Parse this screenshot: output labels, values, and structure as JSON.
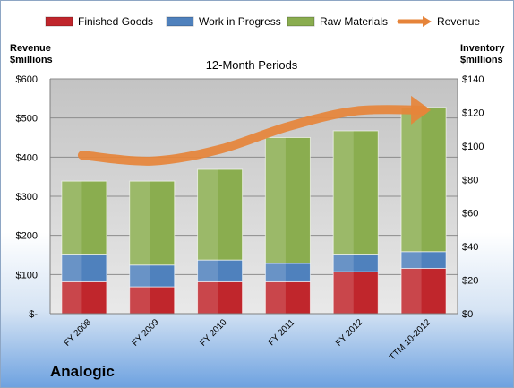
{
  "company": "Analogic",
  "chart_data": {
    "type": "bar",
    "stacked": true,
    "title": "12-Month Periods",
    "ylabel_left": [
      "Revenue",
      "$millions"
    ],
    "ylabel_right": [
      "Inventory",
      "$millions"
    ],
    "categories": [
      "FY 2008",
      "FY 2009",
      "FY 2010",
      "FY 2011",
      "FY 2012",
      "TTM 10-2012"
    ],
    "left_axis": {
      "min": 0,
      "max": 600,
      "ticks": [
        "$-",
        "$100",
        "$200",
        "$300",
        "$400",
        "$500",
        "$600"
      ],
      "tick_values": [
        0,
        100,
        200,
        300,
        400,
        500,
        600
      ]
    },
    "right_axis": {
      "min": 0,
      "max": 140,
      "ticks": [
        "$0",
        "$20",
        "$40",
        "$60",
        "$80",
        "$100",
        "$120",
        "$140"
      ],
      "tick_values": [
        0,
        20,
        40,
        60,
        80,
        100,
        120,
        140
      ]
    },
    "series": [
      {
        "name": "Finished Goods",
        "axis": "right",
        "color": "#c0262c",
        "values": [
          19,
          16,
          19,
          19,
          25,
          27
        ]
      },
      {
        "name": "Work in Progress",
        "axis": "right",
        "color": "#4f81bd",
        "values": [
          16,
          13,
          13,
          11,
          10,
          10
        ]
      },
      {
        "name": "Raw Materials",
        "axis": "right",
        "color": "#8aad4f",
        "values": [
          44,
          50,
          54,
          75,
          74,
          86
        ]
      },
      {
        "name": "Revenue",
        "axis": "left",
        "type": "line",
        "color": "#e6843a",
        "values": [
          405,
          390,
          420,
          478,
          518,
          520
        ]
      }
    ],
    "legend_position": "top",
    "grid": true
  }
}
